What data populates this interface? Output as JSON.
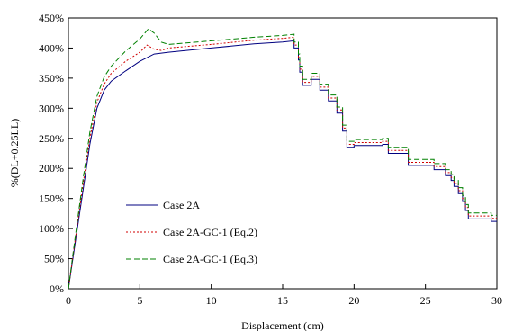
{
  "chart_data": {
    "type": "line",
    "title": "",
    "xlabel": "Displacement (cm)",
    "ylabel": "%(DL+0.25LL)",
    "xlim": [
      0,
      30
    ],
    "ylim": [
      0,
      450
    ],
    "x_ticks": [
      0,
      5,
      10,
      15,
      20,
      25,
      30
    ],
    "y_ticks": [
      0,
      50,
      100,
      150,
      200,
      250,
      300,
      350,
      400,
      450
    ],
    "x_tick_labels": [
      "0",
      "5",
      "10",
      "15",
      "20",
      "25",
      "30"
    ],
    "y_tick_labels": [
      "0%",
      "50%",
      "100%",
      "150%",
      "200%",
      "250%",
      "300%",
      "350%",
      "400%",
      "450%"
    ],
    "grid": false,
    "legend_position": "lower-left",
    "series": [
      {
        "name": "Case 2A",
        "color": "#000080",
        "dash": "solid",
        "points": [
          [
            0,
            0
          ],
          [
            0.5,
            80
          ],
          [
            1,
            160
          ],
          [
            1.5,
            240
          ],
          [
            2,
            300
          ],
          [
            2.5,
            330
          ],
          [
            3,
            345
          ],
          [
            4,
            362
          ],
          [
            5,
            378
          ],
          [
            6,
            390
          ],
          [
            7,
            393
          ],
          [
            10,
            400
          ],
          [
            13,
            407
          ],
          [
            15,
            410
          ],
          [
            15.8,
            412
          ],
          [
            15.8,
            400
          ],
          [
            16.1,
            400
          ],
          [
            16.1,
            380
          ],
          [
            16.2,
            380
          ],
          [
            16.2,
            360
          ],
          [
            16.4,
            360
          ],
          [
            16.4,
            338
          ],
          [
            17,
            338
          ],
          [
            17,
            348
          ],
          [
            17.6,
            348
          ],
          [
            17.6,
            330
          ],
          [
            18.2,
            330
          ],
          [
            18.2,
            312
          ],
          [
            18.8,
            312
          ],
          [
            18.8,
            292
          ],
          [
            19.2,
            292
          ],
          [
            19.2,
            262
          ],
          [
            19.5,
            262
          ],
          [
            19.5,
            235
          ],
          [
            20,
            235
          ],
          [
            20,
            238
          ],
          [
            22,
            238
          ],
          [
            22,
            240
          ],
          [
            22.4,
            240
          ],
          [
            22.4,
            225
          ],
          [
            23.8,
            225
          ],
          [
            23.8,
            205
          ],
          [
            25.6,
            205
          ],
          [
            25.6,
            198
          ],
          [
            26.4,
            198
          ],
          [
            26.4,
            188
          ],
          [
            26.8,
            188
          ],
          [
            26.8,
            180
          ],
          [
            27,
            180
          ],
          [
            27,
            170
          ],
          [
            27.3,
            170
          ],
          [
            27.3,
            158
          ],
          [
            27.6,
            158
          ],
          [
            27.6,
            145
          ],
          [
            27.8,
            145
          ],
          [
            27.8,
            130
          ],
          [
            28,
            130
          ],
          [
            28,
            116
          ],
          [
            29.6,
            116
          ],
          [
            29.6,
            112
          ],
          [
            30,
            112
          ]
        ]
      },
      {
        "name": "Case 2A-GC-1 (Eq.2)",
        "color": "#d00000",
        "dash": "dotted",
        "points": [
          [
            0,
            0
          ],
          [
            0.5,
            85
          ],
          [
            1,
            170
          ],
          [
            1.5,
            250
          ],
          [
            2,
            310
          ],
          [
            2.5,
            340
          ],
          [
            3,
            358
          ],
          [
            4,
            378
          ],
          [
            5,
            393
          ],
          [
            5.5,
            405
          ],
          [
            6,
            398
          ],
          [
            6.5,
            396
          ],
          [
            7,
            400
          ],
          [
            10,
            406
          ],
          [
            13,
            413
          ],
          [
            15,
            416
          ],
          [
            15.8,
            418
          ],
          [
            15.8,
            405
          ],
          [
            16.1,
            405
          ],
          [
            16.1,
            385
          ],
          [
            16.2,
            385
          ],
          [
            16.2,
            365
          ],
          [
            16.4,
            365
          ],
          [
            16.4,
            343
          ],
          [
            17,
            343
          ],
          [
            17,
            353
          ],
          [
            17.6,
            353
          ],
          [
            17.6,
            335
          ],
          [
            18.2,
            335
          ],
          [
            18.2,
            317
          ],
          [
            18.8,
            317
          ],
          [
            18.8,
            297
          ],
          [
            19.2,
            297
          ],
          [
            19.2,
            267
          ],
          [
            19.5,
            267
          ],
          [
            19.5,
            240
          ],
          [
            20,
            240
          ],
          [
            20,
            243
          ],
          [
            22,
            243
          ],
          [
            22,
            245
          ],
          [
            22.4,
            245
          ],
          [
            22.4,
            230
          ],
          [
            23.8,
            230
          ],
          [
            23.8,
            210
          ],
          [
            25.6,
            210
          ],
          [
            25.6,
            203
          ],
          [
            26.4,
            203
          ],
          [
            26.4,
            193
          ],
          [
            26.8,
            193
          ],
          [
            26.8,
            185
          ],
          [
            27,
            185
          ],
          [
            27,
            175
          ],
          [
            27.3,
            175
          ],
          [
            27.3,
            163
          ],
          [
            27.6,
            163
          ],
          [
            27.6,
            150
          ],
          [
            27.8,
            150
          ],
          [
            27.8,
            135
          ],
          [
            28,
            135
          ],
          [
            28,
            121
          ],
          [
            29.6,
            121
          ],
          [
            29.6,
            117
          ],
          [
            30,
            117
          ]
        ]
      },
      {
        "name": "Case 2A-GC-1 (Eq.3)",
        "color": "#008000",
        "dash": "dashed",
        "points": [
          [
            0,
            0
          ],
          [
            0.5,
            90
          ],
          [
            1,
            178
          ],
          [
            1.5,
            260
          ],
          [
            2,
            320
          ],
          [
            2.5,
            352
          ],
          [
            3,
            370
          ],
          [
            4,
            395
          ],
          [
            5,
            415
          ],
          [
            5.6,
            432
          ],
          [
            6,
            425
          ],
          [
            6.5,
            410
          ],
          [
            7,
            406
          ],
          [
            10,
            412
          ],
          [
            13,
            418
          ],
          [
            15,
            421
          ],
          [
            15.8,
            423
          ],
          [
            15.8,
            410
          ],
          [
            16.1,
            410
          ],
          [
            16.1,
            390
          ],
          [
            16.2,
            390
          ],
          [
            16.2,
            370
          ],
          [
            16.4,
            370
          ],
          [
            16.4,
            348
          ],
          [
            17,
            348
          ],
          [
            17,
            358
          ],
          [
            17.6,
            358
          ],
          [
            17.6,
            340
          ],
          [
            18.2,
            340
          ],
          [
            18.2,
            322
          ],
          [
            18.8,
            322
          ],
          [
            18.8,
            302
          ],
          [
            19.2,
            302
          ],
          [
            19.2,
            272
          ],
          [
            19.5,
            272
          ],
          [
            19.5,
            245
          ],
          [
            20,
            245
          ],
          [
            20,
            248
          ],
          [
            22,
            248
          ],
          [
            22,
            250
          ],
          [
            22.4,
            250
          ],
          [
            22.4,
            235
          ],
          [
            23.8,
            235
          ],
          [
            23.8,
            215
          ],
          [
            25.6,
            215
          ],
          [
            25.6,
            208
          ],
          [
            26.4,
            208
          ],
          [
            26.4,
            198
          ],
          [
            26.8,
            198
          ],
          [
            26.8,
            190
          ],
          [
            27,
            190
          ],
          [
            27,
            180
          ],
          [
            27.3,
            180
          ],
          [
            27.3,
            168
          ],
          [
            27.6,
            168
          ],
          [
            27.6,
            155
          ],
          [
            27.8,
            155
          ],
          [
            27.8,
            140
          ],
          [
            28,
            140
          ],
          [
            28,
            126
          ],
          [
            29.6,
            126
          ],
          [
            29.6,
            122
          ],
          [
            30,
            122
          ]
        ]
      }
    ]
  }
}
